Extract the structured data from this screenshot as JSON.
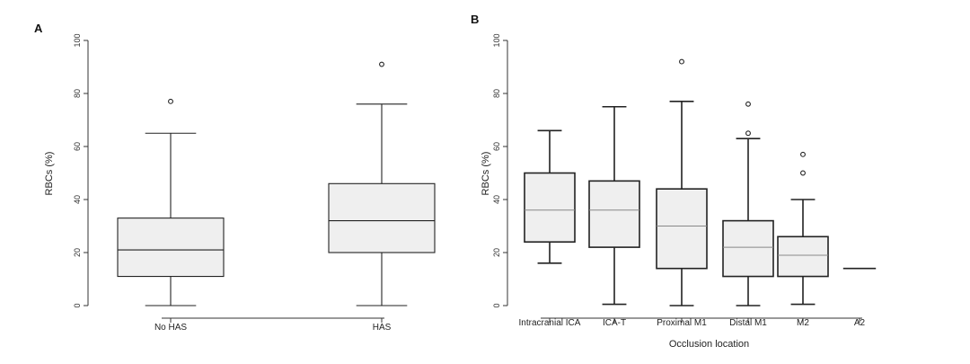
{
  "chart_data": [
    {
      "type": "box",
      "panel_label": "A",
      "ylabel": "RBCs (%)",
      "xlabel": "",
      "ylim": [
        0,
        100
      ],
      "yticks": [
        0,
        20,
        40,
        60,
        80,
        100
      ],
      "categories": [
        "No HAS",
        "HAS"
      ],
      "boxes": [
        {
          "category": "No HAS",
          "whisker_low": 0,
          "q1": 11,
          "median": 21,
          "q3": 33,
          "whisker_high": 65,
          "outliers": [
            77
          ]
        },
        {
          "category": "HAS",
          "whisker_low": 0,
          "q1": 20,
          "median": 32,
          "q3": 46,
          "whisker_high": 76,
          "outliers": [
            91
          ]
        }
      ]
    },
    {
      "type": "box",
      "panel_label": "B",
      "ylabel": "RBCs (%)",
      "xlabel": "Occlusion location",
      "ylim": [
        0,
        100
      ],
      "yticks": [
        0,
        20,
        40,
        60,
        80,
        100
      ],
      "categories": [
        "Intracranial ICA",
        "ICA-T",
        "Proximal M1",
        "Distal M1",
        "M2",
        "A2"
      ],
      "boxes": [
        {
          "category": "Intracranial ICA",
          "whisker_low": 16,
          "q1": 24,
          "median": 36,
          "q3": 50,
          "whisker_high": 66,
          "outliers": []
        },
        {
          "category": "ICA-T",
          "whisker_low": 0.5,
          "q1": 22,
          "median": 36,
          "q3": 47,
          "whisker_high": 75,
          "outliers": []
        },
        {
          "category": "Proximal M1",
          "whisker_low": 0,
          "q1": 14,
          "median": 30,
          "q3": 44,
          "whisker_high": 77,
          "outliers": [
            92
          ]
        },
        {
          "category": "Distal M1",
          "whisker_low": 0,
          "q1": 11,
          "median": 22,
          "q3": 32,
          "whisker_high": 63,
          "outliers": [
            65,
            76
          ]
        },
        {
          "category": "M2",
          "whisker_low": 0.5,
          "q1": 11,
          "median": 19,
          "q3": 26,
          "whisker_high": 40,
          "outliers": [
            50,
            57
          ]
        },
        {
          "category": "A2",
          "whisker_low": 14,
          "q1": 14,
          "median": 14,
          "q3": 14,
          "whisker_high": 14,
          "outliers": []
        }
      ]
    }
  ],
  "colors": {
    "box_fill": "#efefef",
    "stroke": "#222222"
  }
}
